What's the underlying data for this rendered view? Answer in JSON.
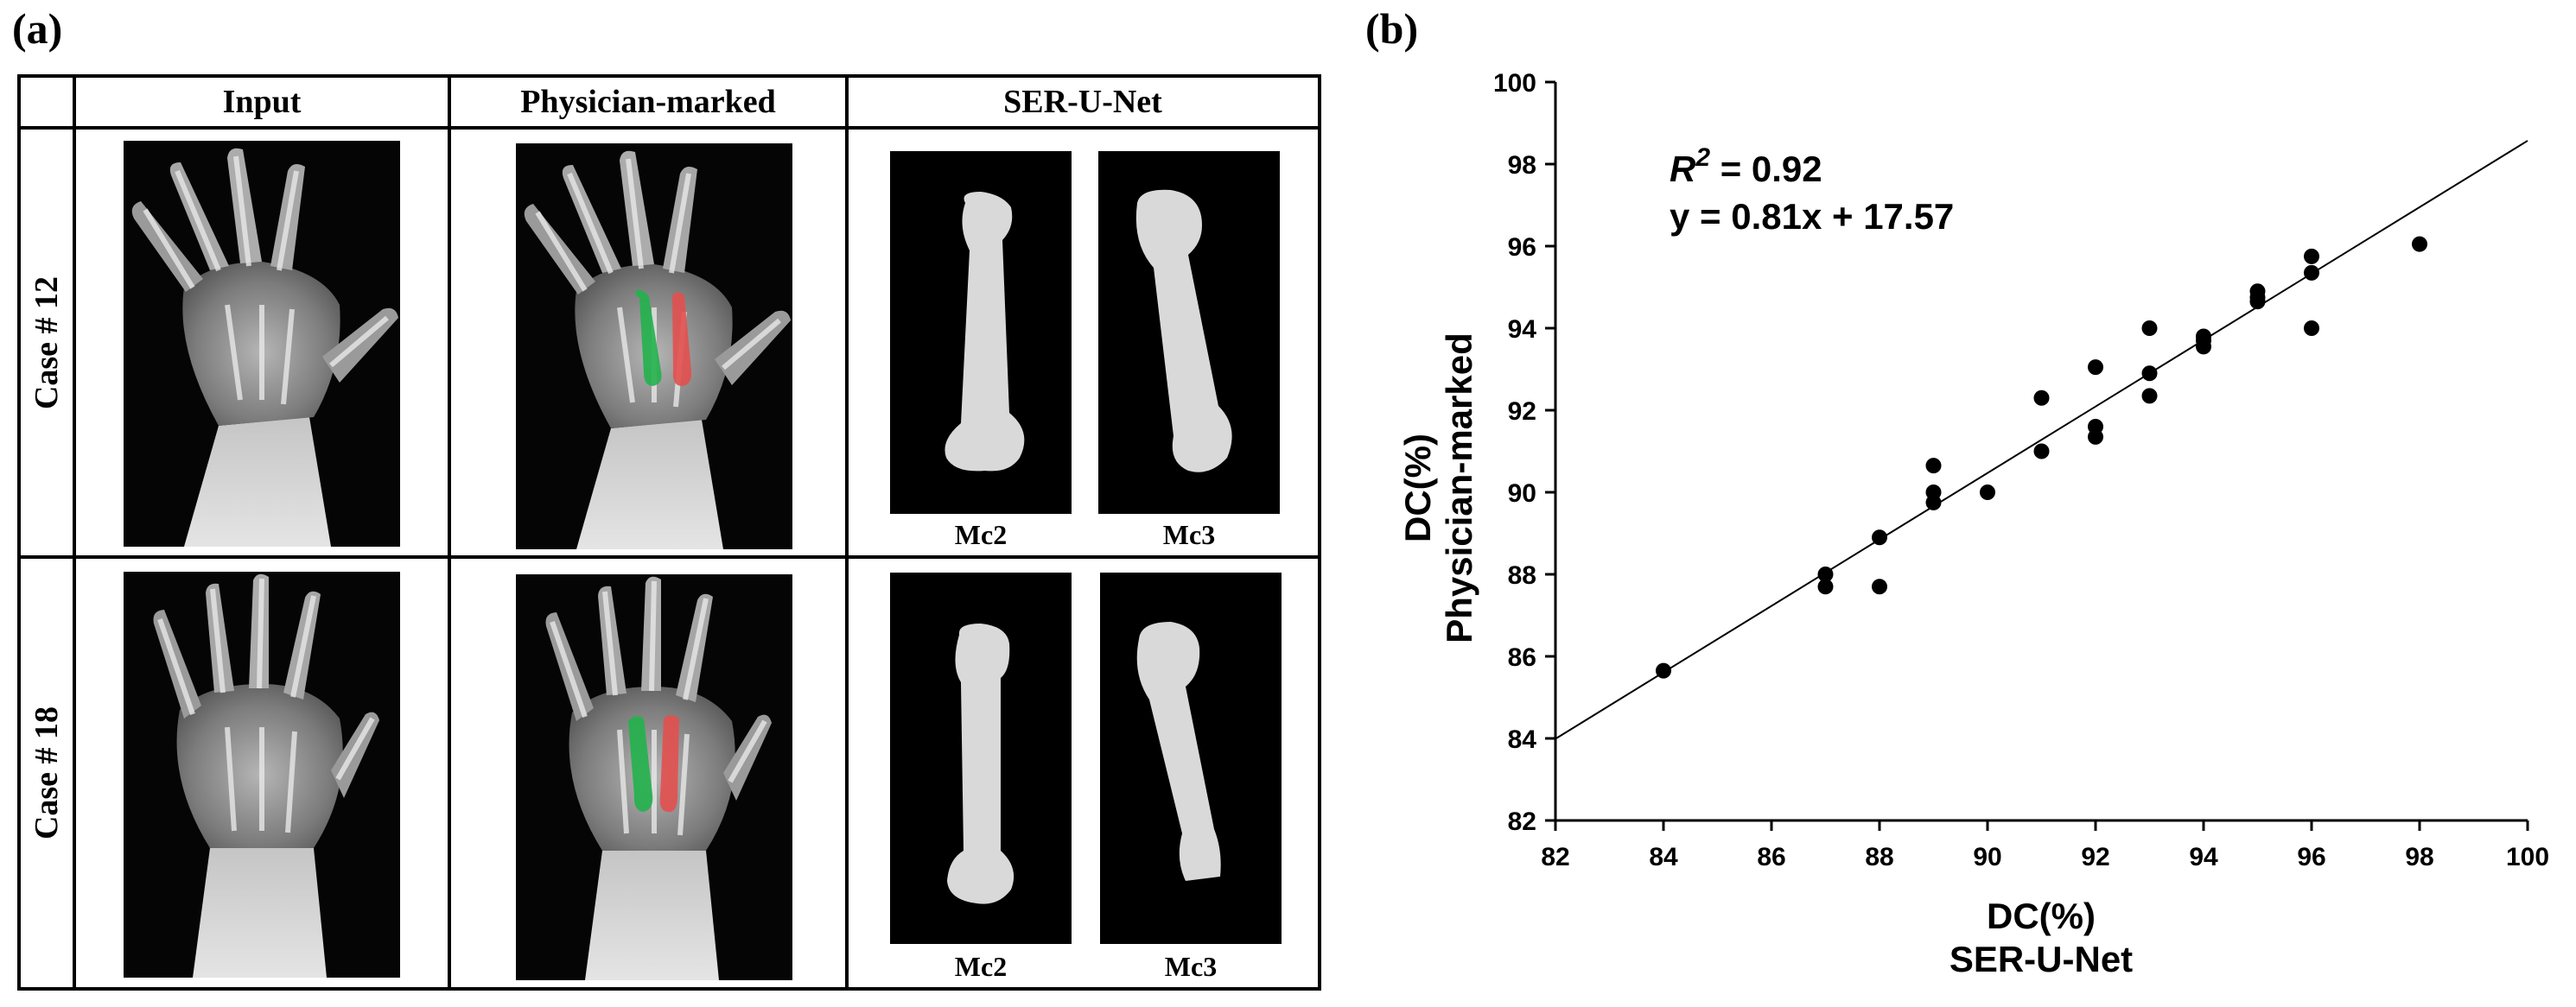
{
  "panel_a": {
    "label": "(a)",
    "columns": [
      "Input",
      "Physician-marked",
      "SER-U-Net"
    ],
    "rows": [
      {
        "case": "Case # 12",
        "masks": [
          "Mc2",
          "Mc3"
        ]
      },
      {
        "case": "Case # 18",
        "masks": [
          "Mc2",
          "Mc3"
        ]
      }
    ]
  },
  "panel_b": {
    "label": "(b)",
    "r2_label": "R",
    "r2_exp": "2",
    "r2_value": " = 0.92",
    "equation": "y = 0.81x +  17.57"
  },
  "chart_data": {
    "type": "scatter",
    "xlabel": "DC(%)",
    "xlabel_sub": "SER-U-Net",
    "ylabel": "DC(%)",
    "ylabel_sub": "Physician-marked",
    "xlim": [
      82,
      100
    ],
    "ylim": [
      82,
      100
    ],
    "xticks": [
      82,
      84,
      86,
      88,
      90,
      92,
      94,
      96,
      98,
      100
    ],
    "yticks": [
      82,
      84,
      86,
      88,
      90,
      92,
      94,
      96,
      98,
      100
    ],
    "grid": false,
    "fit_line": {
      "slope": 0.81,
      "intercept": 17.57
    },
    "points": [
      [
        84,
        85.65
      ],
      [
        87,
        87.7
      ],
      [
        87,
        88.0
      ],
      [
        88,
        87.7
      ],
      [
        88,
        88.9
      ],
      [
        89,
        89.75
      ],
      [
        89,
        90.0
      ],
      [
        89,
        90.65
      ],
      [
        90,
        90.0
      ],
      [
        91,
        91.0
      ],
      [
        91,
        92.3
      ],
      [
        92,
        91.35
      ],
      [
        92,
        91.6
      ],
      [
        92,
        93.05
      ],
      [
        93,
        92.35
      ],
      [
        93,
        92.9
      ],
      [
        93,
        94.0
      ],
      [
        94,
        93.55
      ],
      [
        94,
        93.7
      ],
      [
        94,
        93.8
      ],
      [
        95,
        94.65
      ],
      [
        95,
        94.75
      ],
      [
        95,
        94.9
      ],
      [
        96,
        94.0
      ],
      [
        96,
        95.35
      ],
      [
        96,
        95.75
      ],
      [
        98,
        96.05
      ]
    ]
  }
}
